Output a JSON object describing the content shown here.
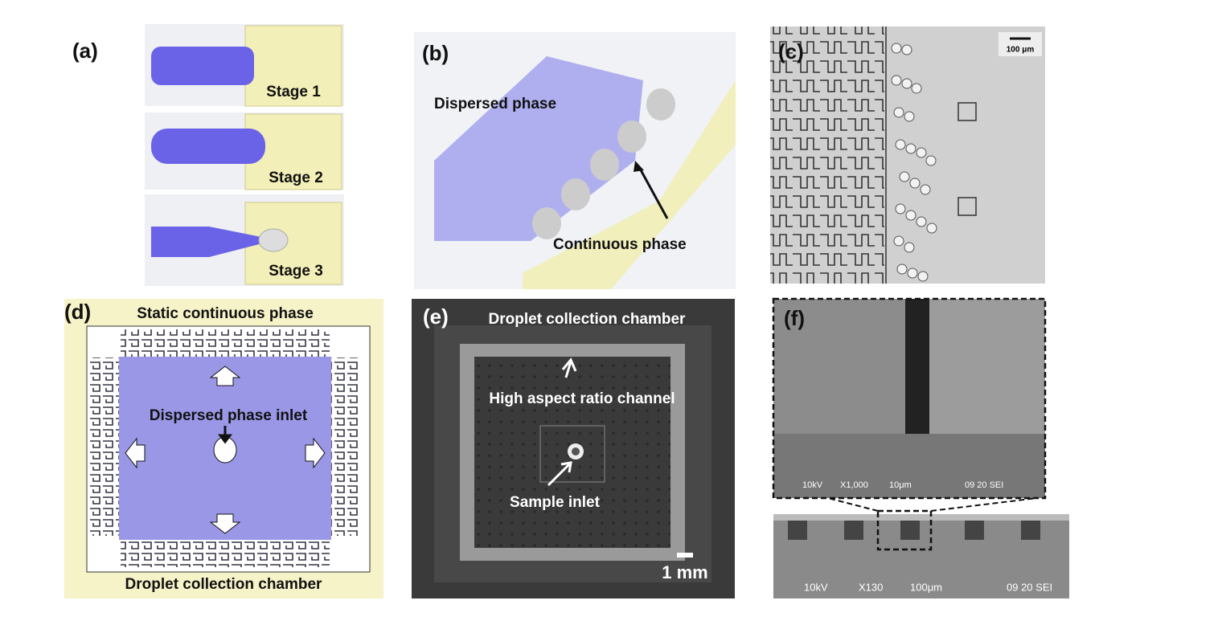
{
  "panels": {
    "a": {
      "label": "(a)",
      "stages": [
        "Stage 1",
        "Stage 2",
        "Stage 3"
      ]
    },
    "b": {
      "label": "(b)",
      "dispersed": "Dispersed phase",
      "continuous": "Continuous phase"
    },
    "c": {
      "label": "(c)",
      "scale": "100 μm"
    },
    "d": {
      "label": "(d)",
      "top": "Static continuous phase",
      "inlet": "Dispersed phase inlet",
      "bottom": "Droplet collection chamber"
    },
    "e": {
      "label": "(e)",
      "top": "Droplet collection chamber",
      "channel": "High aspect ratio channel",
      "inlet": "Sample inlet",
      "scale": "1 mm"
    },
    "f": {
      "label": "(f)",
      "inset": [
        "10kV",
        "X1,000",
        "10μm",
        "09 20 SEI"
      ],
      "main": [
        "10kV",
        "X130",
        "100μm",
        "09 20 SEI"
      ]
    }
  }
}
